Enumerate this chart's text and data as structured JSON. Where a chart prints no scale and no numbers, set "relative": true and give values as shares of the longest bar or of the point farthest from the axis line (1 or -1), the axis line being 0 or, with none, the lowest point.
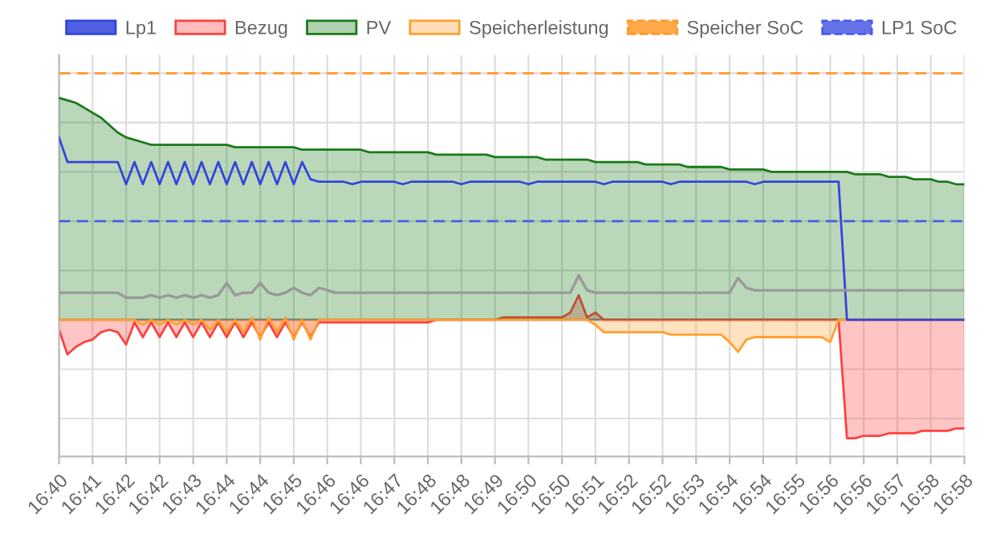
{
  "chart_data": {
    "type": "line",
    "relative": true,
    "grid": true,
    "legend": "top",
    "categories": [
      "16:40",
      null,
      null,
      null,
      "16:41",
      null,
      null,
      null,
      "16:42",
      null,
      null,
      null,
      "16:42",
      null,
      null,
      null,
      "16:43",
      null,
      null,
      null,
      "16:44",
      null,
      null,
      null,
      "16:44",
      null,
      null,
      null,
      "16:45",
      null,
      null,
      null,
      "16:46",
      null,
      null,
      null,
      "16:46",
      null,
      null,
      null,
      "16:47",
      null,
      null,
      null,
      "16:48",
      null,
      null,
      null,
      "16:48",
      null,
      null,
      null,
      "16:49",
      null,
      null,
      null,
      "16:50",
      null,
      null,
      null,
      "16:50",
      null,
      null,
      null,
      "16:51",
      null,
      null,
      null,
      "16:52",
      null,
      null,
      null,
      "16:52",
      null,
      null,
      null,
      "16:53",
      null,
      null,
      null,
      "16:54",
      null,
      null,
      null,
      "16:54",
      null,
      null,
      null,
      "16:55",
      null,
      null,
      null,
      "16:56",
      null,
      null,
      null,
      "16:56",
      null,
      null,
      null,
      "16:57",
      null,
      null,
      null,
      "16:58",
      null,
      null,
      null,
      "16:58"
    ],
    "series": [
      {
        "name": "Lp1",
        "color": "#3344dd",
        "values": [
          0.74,
          0.64,
          0.64,
          0.64,
          0.64,
          0.64,
          0.64,
          0.64,
          0.55,
          0.64,
          0.55,
          0.64,
          0.55,
          0.64,
          0.55,
          0.64,
          0.55,
          0.64,
          0.55,
          0.64,
          0.55,
          0.64,
          0.55,
          0.64,
          0.55,
          0.64,
          0.55,
          0.64,
          0.55,
          0.64,
          0.57,
          0.56,
          0.56,
          0.56,
          0.56,
          0.55,
          0.56,
          0.56,
          0.56,
          0.56,
          0.56,
          0.55,
          0.56,
          0.56,
          0.56,
          0.56,
          0.56,
          0.56,
          0.55,
          0.56,
          0.56,
          0.56,
          0.56,
          0.56,
          0.56,
          0.56,
          0.55,
          0.56,
          0.56,
          0.56,
          0.56,
          0.56,
          0.56,
          0.56,
          0.56,
          0.55,
          0.56,
          0.56,
          0.56,
          0.56,
          0.56,
          0.56,
          0.56,
          0.55,
          0.56,
          0.56,
          0.56,
          0.56,
          0.56,
          0.56,
          0.56,
          0.56,
          0.56,
          0.55,
          0.56,
          0.56,
          0.56,
          0.56,
          0.56,
          0.56,
          0.56,
          0.56,
          0.56,
          0.56,
          0,
          0,
          0,
          0,
          0,
          0,
          0,
          0,
          0,
          0,
          0,
          0,
          0,
          0,
          0
        ]
      },
      {
        "name": "Bezug",
        "type": "area",
        "color": "#ff4040",
        "values": [
          -0.04,
          -0.14,
          -0.11,
          -0.09,
          -0.08,
          -0.05,
          -0.04,
          -0.05,
          -0.1,
          -0.01,
          -0.07,
          -0.01,
          -0.07,
          -0.01,
          -0.07,
          -0.01,
          -0.07,
          -0.01,
          -0.07,
          -0.01,
          -0.07,
          -0.01,
          -0.07,
          -0.01,
          -0.07,
          -0.01,
          -0.07,
          -0.01,
          -0.07,
          -0.01,
          -0.07,
          -0.01,
          -0.01,
          -0.01,
          -0.01,
          -0.01,
          -0.01,
          -0.01,
          -0.01,
          -0.01,
          -0.01,
          -0.01,
          -0.01,
          -0.01,
          -0.01,
          0,
          0,
          0,
          0,
          0,
          0,
          0,
          0,
          0.01,
          0.01,
          0.01,
          0.01,
          0.01,
          0.01,
          0.01,
          0.01,
          0.03,
          0.1,
          0.01,
          0.03,
          0,
          0,
          0,
          0,
          0,
          0,
          0,
          0,
          0,
          0,
          0,
          0,
          0,
          0,
          0,
          0,
          0,
          0,
          0,
          0,
          0,
          0,
          0,
          0,
          0,
          0,
          0,
          0,
          0,
          -0.48,
          -0.48,
          -0.47,
          -0.47,
          -0.47,
          -0.46,
          -0.46,
          -0.46,
          -0.46,
          -0.45,
          -0.45,
          -0.45,
          -0.45,
          -0.44,
          -0.44
        ]
      },
      {
        "name": "PV",
        "type": "area",
        "color": "#1a7a1a",
        "values": [
          0.9,
          0.89,
          0.88,
          0.86,
          0.84,
          0.82,
          0.79,
          0.76,
          0.74,
          0.73,
          0.72,
          0.71,
          0.71,
          0.71,
          0.71,
          0.71,
          0.71,
          0.71,
          0.71,
          0.71,
          0.71,
          0.7,
          0.7,
          0.7,
          0.7,
          0.7,
          0.7,
          0.7,
          0.7,
          0.69,
          0.69,
          0.69,
          0.69,
          0.69,
          0.69,
          0.69,
          0.69,
          0.68,
          0.68,
          0.68,
          0.68,
          0.68,
          0.68,
          0.68,
          0.68,
          0.67,
          0.67,
          0.67,
          0.67,
          0.67,
          0.67,
          0.67,
          0.66,
          0.66,
          0.66,
          0.66,
          0.66,
          0.66,
          0.65,
          0.65,
          0.65,
          0.65,
          0.65,
          0.65,
          0.64,
          0.64,
          0.64,
          0.64,
          0.64,
          0.64,
          0.63,
          0.63,
          0.63,
          0.63,
          0.63,
          0.62,
          0.62,
          0.62,
          0.62,
          0.62,
          0.61,
          0.61,
          0.61,
          0.61,
          0.61,
          0.6,
          0.6,
          0.6,
          0.6,
          0.6,
          0.6,
          0.6,
          0.6,
          0.6,
          0.6,
          0.59,
          0.59,
          0.59,
          0.59,
          0.58,
          0.58,
          0.58,
          0.57,
          0.57,
          0.57,
          0.56,
          0.56,
          0.55,
          0.55
        ]
      },
      {
        "name": "Speicherleistung",
        "type": "area",
        "color": "#ffa030",
        "values": [
          0,
          0,
          0,
          0,
          0,
          0,
          0,
          0,
          0,
          0,
          -0.02,
          0,
          -0.02,
          0,
          -0.02,
          0,
          -0.02,
          0,
          -0.04,
          0,
          -0.05,
          0,
          -0.05,
          0.01,
          -0.08,
          0.01,
          -0.05,
          0.01,
          -0.08,
          0,
          -0.08,
          0,
          0,
          0,
          0,
          0,
          0,
          0,
          0,
          0,
          0,
          0,
          0,
          0,
          0,
          0,
          0,
          0,
          0,
          0,
          0,
          0,
          0,
          0,
          0,
          0,
          0,
          0,
          0,
          0,
          0,
          0,
          0,
          0,
          -0.02,
          -0.05,
          -0.05,
          -0.05,
          -0.05,
          -0.05,
          -0.05,
          -0.05,
          -0.05,
          -0.06,
          -0.06,
          -0.06,
          -0.06,
          -0.06,
          -0.06,
          -0.06,
          -0.09,
          -0.13,
          -0.08,
          -0.07,
          -0.07,
          -0.07,
          -0.07,
          -0.07,
          -0.07,
          -0.07,
          -0.07,
          -0.07,
          -0.09,
          0,
          0,
          0,
          0,
          0,
          0,
          0,
          0,
          0,
          0,
          0,
          0,
          0,
          0,
          0,
          0
        ]
      },
      {
        "name": "Speicher SoC",
        "line_style": "dashed",
        "color": "#ff9a2a",
        "values": [
          1,
          1,
          1,
          1,
          1,
          1,
          1,
          1,
          1,
          1,
          1,
          1,
          1,
          1,
          1,
          1,
          1,
          1,
          1,
          1,
          1,
          1,
          1,
          1,
          1,
          1,
          1,
          1,
          1,
          1,
          1,
          1,
          1,
          1,
          1,
          1,
          1,
          1,
          1,
          1,
          1,
          1,
          1,
          1,
          1,
          1,
          1,
          1,
          1,
          1,
          1,
          1,
          1,
          1,
          1,
          1,
          1,
          1,
          1,
          1,
          1,
          1,
          1,
          1,
          1,
          1,
          1,
          1,
          1,
          1,
          1,
          1,
          1,
          1,
          1,
          1,
          1,
          1,
          1,
          1,
          1,
          1,
          1,
          1,
          1,
          1,
          1,
          1,
          1,
          1,
          1,
          1,
          1,
          1,
          1,
          1,
          1,
          1,
          1,
          1,
          1,
          1,
          1,
          1,
          1,
          1,
          1,
          1,
          1
        ]
      },
      {
        "name": "LP1 SoC",
        "line_style": "dashed",
        "color": "#4a5be8",
        "values": [
          0.4,
          0.4,
          0.4,
          0.4,
          0.4,
          0.4,
          0.4,
          0.4,
          0.4,
          0.4,
          0.4,
          0.4,
          0.4,
          0.4,
          0.4,
          0.4,
          0.4,
          0.4,
          0.4,
          0.4,
          0.4,
          0.4,
          0.4,
          0.4,
          0.4,
          0.4,
          0.4,
          0.4,
          0.4,
          0.4,
          0.4,
          0.4,
          0.4,
          0.4,
          0.4,
          0.4,
          0.4,
          0.4,
          0.4,
          0.4,
          0.4,
          0.4,
          0.4,
          0.4,
          0.4,
          0.4,
          0.4,
          0.4,
          0.4,
          0.4,
          0.4,
          0.4,
          0.4,
          0.4,
          0.4,
          0.4,
          0.4,
          0.4,
          0.4,
          0.4,
          0.4,
          0.4,
          0.4,
          0.4,
          0.4,
          0.4,
          0.4,
          0.4,
          0.4,
          0.4,
          0.4,
          0.4,
          0.4,
          0.4,
          0.4,
          0.4,
          0.4,
          0.4,
          0.4,
          0.4,
          0.4,
          0.4,
          0.4,
          0.4,
          0.4,
          0.4,
          0.4,
          0.4,
          0.4,
          0.4,
          0.4,
          0.4,
          0.4,
          0.4,
          0.4,
          0.4,
          0.4,
          0.4,
          0.4,
          0.4,
          0.4,
          0.4,
          0.4,
          0.4,
          0.4,
          0.4,
          0.4,
          0.4,
          0.4
        ]
      },
      {
        "color": "#999999",
        "values": [
          0.11,
          0.11,
          0.11,
          0.11,
          0.11,
          0.11,
          0.11,
          0.11,
          0.09,
          0.09,
          0.09,
          0.1,
          0.09,
          0.1,
          0.09,
          0.1,
          0.09,
          0.1,
          0.09,
          0.1,
          0.15,
          0.1,
          0.11,
          0.11,
          0.15,
          0.11,
          0.1,
          0.11,
          0.13,
          0.11,
          0.1,
          0.13,
          0.12,
          0.11,
          0.11,
          0.11,
          0.11,
          0.11,
          0.11,
          0.11,
          0.11,
          0.11,
          0.11,
          0.11,
          0.11,
          0.11,
          0.11,
          0.11,
          0.11,
          0.11,
          0.11,
          0.11,
          0.11,
          0.11,
          0.11,
          0.11,
          0.11,
          0.11,
          0.11,
          0.11,
          0.11,
          0.11,
          0.18,
          0.12,
          0.11,
          0.11,
          0.11,
          0.11,
          0.11,
          0.11,
          0.11,
          0.11,
          0.11,
          0.11,
          0.11,
          0.11,
          0.11,
          0.11,
          0.11,
          0.11,
          0.11,
          0.17,
          0.13,
          0.12,
          0.12,
          0.12,
          0.12,
          0.12,
          0.12,
          0.12,
          0.12,
          0.12,
          0.12,
          0.12,
          0.12,
          0.12,
          0.12,
          0.12,
          0.12,
          0.12,
          0.12,
          0.12,
          0.12,
          0.12,
          0.12,
          0.12,
          0.12,
          0.12,
          0.12
        ]
      }
    ]
  }
}
